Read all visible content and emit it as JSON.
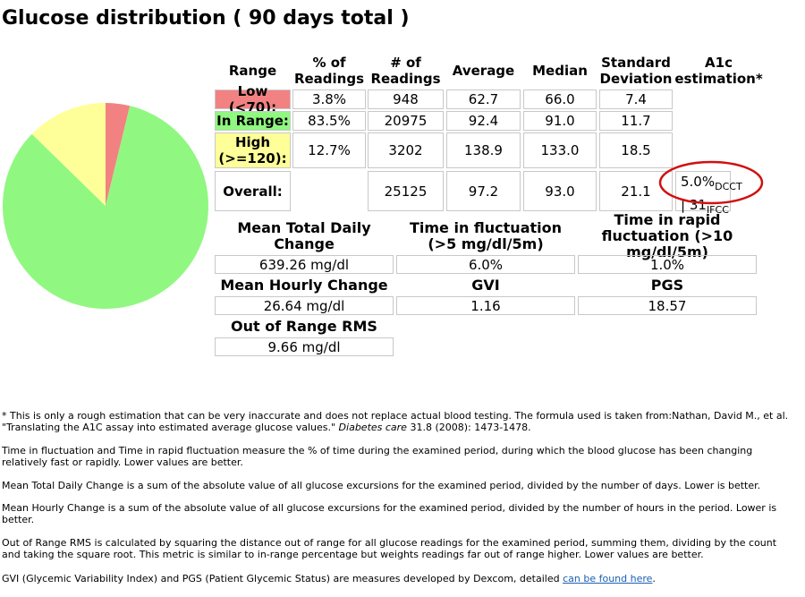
{
  "title": "Glucose distribution ( 90 days total )",
  "chart_data": {
    "type": "pie",
    "categories": [
      "Low (<70):",
      "In Range:",
      "High (>=120):"
    ],
    "values": [
      3.8,
      83.5,
      12.7
    ],
    "value_labels": [
      "3.8%",
      "83.5%",
      "12.7%"
    ],
    "colors": [
      "#f28282",
      "#90f880",
      "#ffff99"
    ]
  },
  "stats_table": {
    "headers": [
      "Range",
      "% of Readings",
      "# of Readings",
      "Average",
      "Median",
      "Standard Deviation",
      "A1c estimation*"
    ],
    "rows": [
      {
        "count": "948",
        "average": "62.7",
        "median": "66.0",
        "sd": "7.4"
      },
      {
        "count": "20975",
        "average": "92.4",
        "median": "91.0",
        "sd": "11.7"
      },
      {
        "count": "3202",
        "average": "138.9",
        "median": "133.0",
        "sd": "18.5"
      }
    ],
    "overall": {
      "label": "Overall:",
      "count": "25125",
      "average": "97.2",
      "median": "93.0",
      "sd": "21.1",
      "a1c": {
        "dcct": "5.0%",
        "dcct_unit": "DCCT",
        "separator": "|",
        "ifcc": "31",
        "ifcc_unit": "IFCC"
      }
    }
  },
  "metrics": [
    {
      "label": "Mean Total Daily Change",
      "value": "639.26 mg/dl"
    },
    {
      "label": "Time in fluctuation (>5 mg/dl/5m)",
      "value": "6.0%"
    },
    {
      "label": "Time in rapid fluctuation (>10 mg/dl/5m)",
      "value": "1.0%"
    },
    {
      "label": "Mean Hourly Change",
      "value": "26.64 mg/dl"
    },
    {
      "label": "GVI",
      "value": "1.16"
    },
    {
      "label": "PGS",
      "value": "18.57"
    },
    {
      "label": "Out of Range RMS",
      "value": "9.66 mg/dl"
    }
  ],
  "notes": {
    "a1c_before": "* This is only a rough estimation that can be very inaccurate and does not replace actual blood testing. The formula used is taken from:Nathan, David M., et al. \"Translating the A1C assay into estimated average glucose values.\" ",
    "a1c_journal": "Diabetes care",
    "a1c_after": " 31.8 (2008): 1473-1478.",
    "fluctuation": "Time in fluctuation and Time in rapid fluctuation measure the % of time during the examined period, during which the blood glucose has been changing relatively fast or rapidly. Lower values are better.",
    "daily_change": "Mean Total Daily Change is a sum of the absolute value of all glucose excursions for the examined period, divided by the number of days. Lower is better.",
    "hourly_change": "Mean Hourly Change is a sum of the absolute value of all glucose excursions for the examined period, divided by the number of hours in the period. Lower is better.",
    "rms": "Out of Range RMS is calculated by squaring the distance out of range for all glucose readings for the examined period, summing them, dividing by the count and taking the square root. This metric is similar to in-range percentage but weights readings far out of range higher. Lower values are better.",
    "gvi_before": "GVI (Glycemic Variability Index) and PGS (Patient Glycemic Status) are measures developed by Dexcom, detailed ",
    "gvi_link": "can be found here",
    "gvi_after": "."
  }
}
